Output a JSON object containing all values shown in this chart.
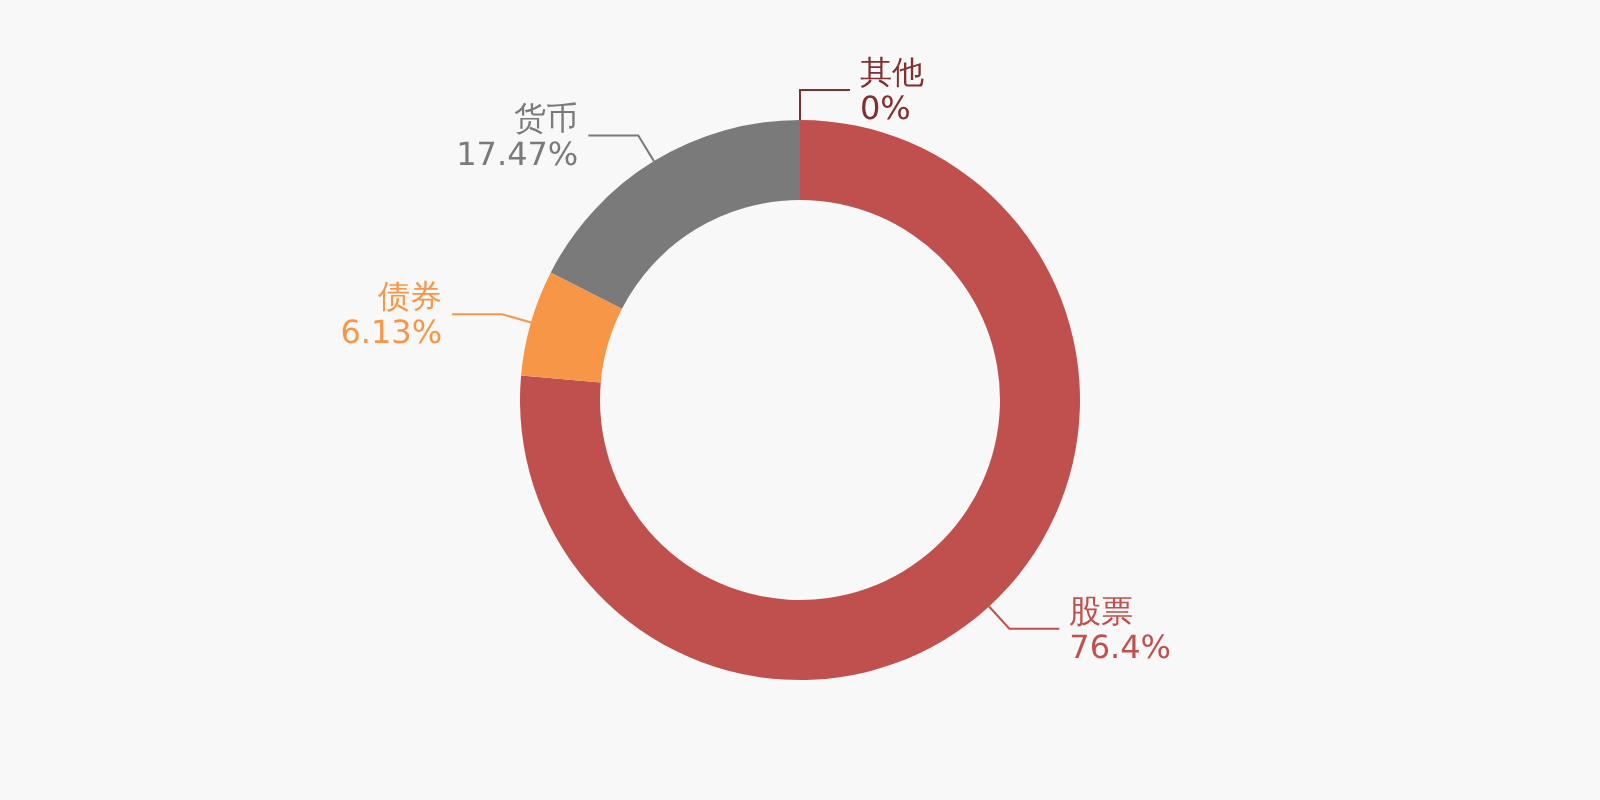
{
  "chart_data": {
    "type": "donut",
    "categories": [
      "股票",
      "债券",
      "货币",
      "其他"
    ],
    "values": [
      76.4,
      6.13,
      17.47,
      0
    ],
    "value_labels": [
      "76.4%",
      "6.13%",
      "17.47%",
      "0%"
    ],
    "colors": [
      "#c0504d",
      "#f79646",
      "#7a7a7a",
      "#7f2f2f"
    ],
    "legend": false
  }
}
